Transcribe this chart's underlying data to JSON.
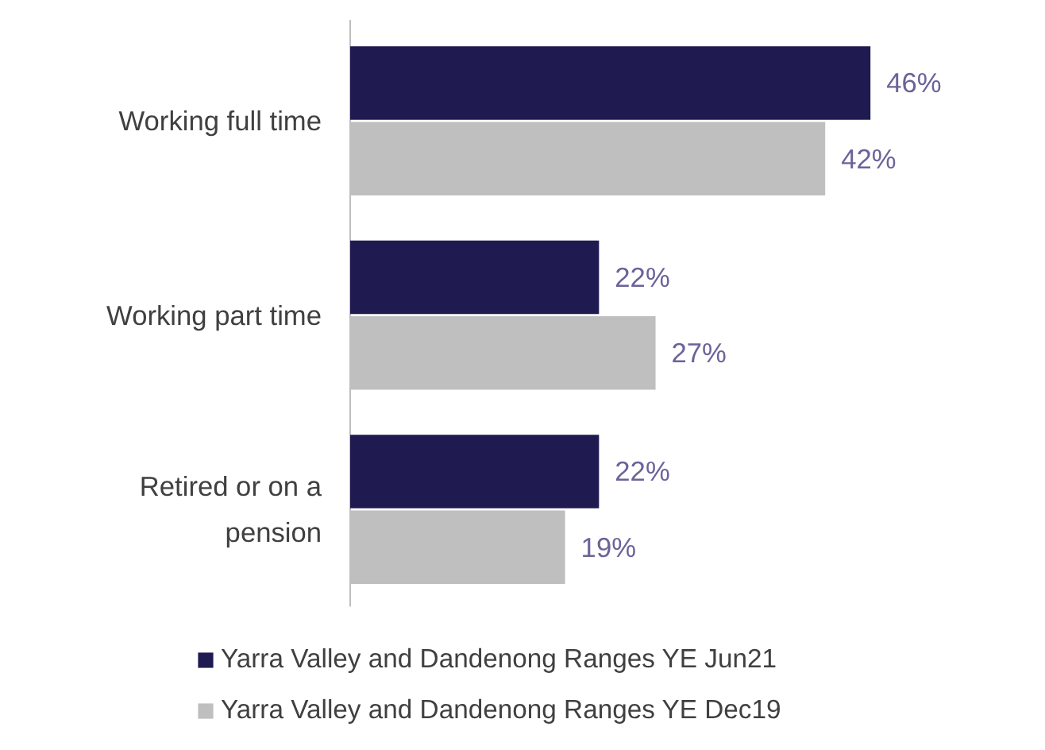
{
  "chart_data": {
    "type": "bar",
    "orientation": "horizontal",
    "categories": [
      "Working full time",
      "Working part time",
      "Retired or on a\npension"
    ],
    "series": [
      {
        "name": "Yarra Valley and Dandenong Ranges YE Jun21",
        "color": "#1f1a4f",
        "values": [
          46,
          22,
          22
        ],
        "value_labels": [
          "46%",
          "22%",
          "22%"
        ]
      },
      {
        "name": "Yarra Valley and Dandenong Ranges YE Dec19",
        "color": "#bfbfbf",
        "values": [
          42,
          27,
          19
        ],
        "value_labels": [
          "42%",
          "27%",
          "19%"
        ]
      }
    ],
    "legend": "bottom",
    "grid": false
  }
}
